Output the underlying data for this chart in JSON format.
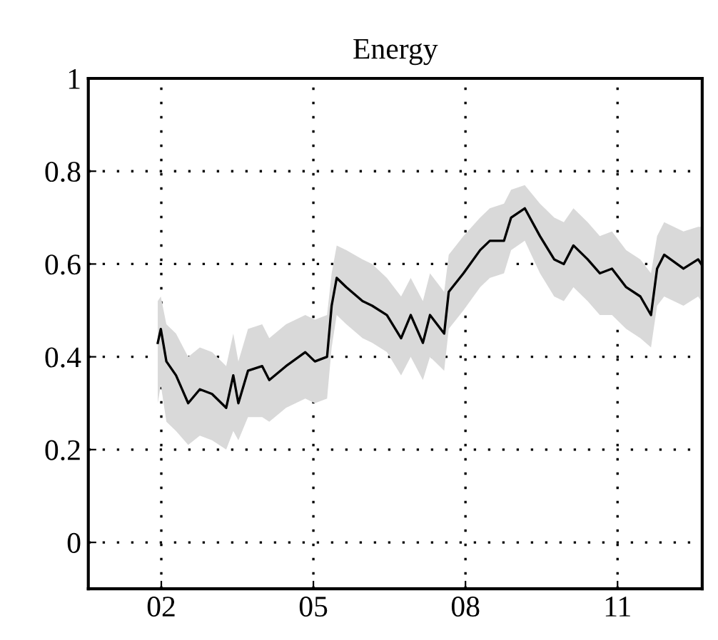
{
  "chart_data": {
    "type": "line",
    "title": "Energy",
    "x": [
      2001.93,
      2001.99,
      2002.1,
      2002.29,
      2002.53,
      2002.76,
      2003.0,
      2003.28,
      2003.42,
      2003.52,
      2003.71,
      2003.99,
      2004.13,
      2004.46,
      2004.84,
      2005.03,
      2005.27,
      2005.36,
      2005.46,
      2005.65,
      2005.97,
      2006.16,
      2006.45,
      2006.73,
      2006.92,
      2007.16,
      2007.3,
      2007.58,
      2007.67,
      2007.96,
      2008.29,
      2008.48,
      2008.76,
      2008.9,
      2009.17,
      2009.47,
      2009.75,
      2009.94,
      2010.13,
      2010.41,
      2010.65,
      2010.89,
      2011.17,
      2011.45,
      2011.66,
      2011.78,
      2011.92,
      2012.3,
      2012.59,
      2012.65
    ],
    "series": [
      {
        "color": "#000000",
        "values": [
          0.43,
          0.46,
          0.39,
          0.36,
          0.3,
          0.33,
          0.32,
          0.29,
          0.36,
          0.3,
          0.37,
          0.38,
          0.35,
          0.38,
          0.41,
          0.39,
          0.4,
          0.51,
          0.57,
          0.55,
          0.52,
          0.51,
          0.49,
          0.44,
          0.49,
          0.43,
          0.49,
          0.45,
          0.54,
          0.58,
          0.63,
          0.65,
          0.65,
          0.7,
          0.72,
          0.66,
          0.61,
          0.6,
          0.64,
          0.61,
          0.58,
          0.59,
          0.55,
          0.53,
          0.49,
          0.59,
          0.62,
          0.59,
          0.61,
          0.6
        ],
        "lower": [
          0.3,
          0.34,
          0.26,
          0.24,
          0.21,
          0.23,
          0.22,
          0.2,
          0.24,
          0.22,
          0.27,
          0.27,
          0.26,
          0.29,
          0.31,
          0.3,
          0.31,
          0.42,
          0.49,
          0.47,
          0.44,
          0.43,
          0.41,
          0.36,
          0.4,
          0.35,
          0.4,
          0.37,
          0.46,
          0.5,
          0.55,
          0.57,
          0.58,
          0.63,
          0.65,
          0.58,
          0.53,
          0.52,
          0.55,
          0.52,
          0.49,
          0.49,
          0.46,
          0.44,
          0.42,
          0.51,
          0.53,
          0.51,
          0.53,
          0.52
        ],
        "upper": [
          0.52,
          0.53,
          0.47,
          0.45,
          0.4,
          0.42,
          0.41,
          0.38,
          0.45,
          0.39,
          0.46,
          0.47,
          0.44,
          0.47,
          0.49,
          0.48,
          0.49,
          0.58,
          0.64,
          0.63,
          0.61,
          0.6,
          0.57,
          0.53,
          0.57,
          0.52,
          0.58,
          0.54,
          0.62,
          0.66,
          0.7,
          0.72,
          0.73,
          0.76,
          0.77,
          0.73,
          0.7,
          0.69,
          0.72,
          0.69,
          0.66,
          0.67,
          0.63,
          0.61,
          0.58,
          0.66,
          0.69,
          0.67,
          0.68,
          0.68
        ]
      }
    ],
    "xlim": [
      2000.56,
      2012.67
    ],
    "ylim": [
      -0.1,
      1
    ],
    "xticks": [
      {
        "value": 2002,
        "label": "02"
      },
      {
        "value": 2005,
        "label": "05"
      },
      {
        "value": 2008,
        "label": "08"
      },
      {
        "value": 2011,
        "label": "11"
      }
    ],
    "yticks": [
      {
        "value": 0,
        "label": "0"
      },
      0.2,
      0.4,
      0.6,
      0.8,
      1
    ],
    "grid": true,
    "line_style": "solid"
  }
}
